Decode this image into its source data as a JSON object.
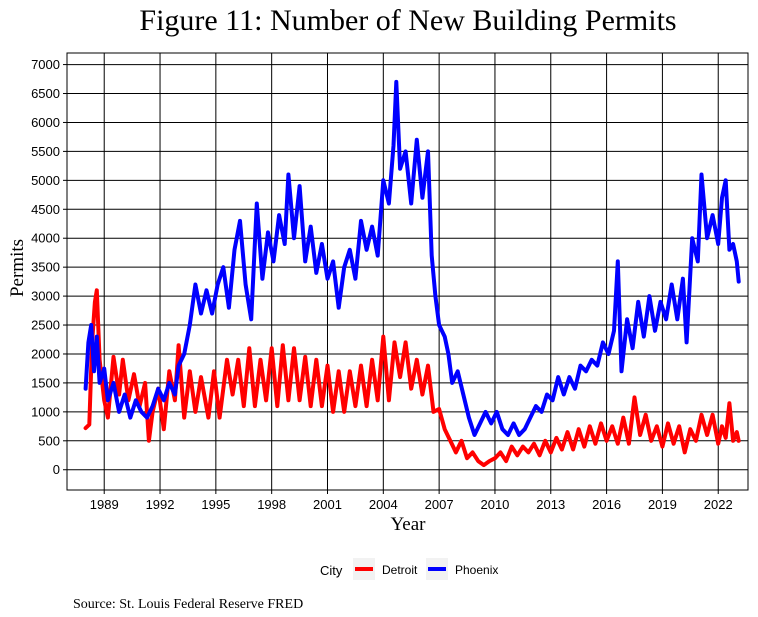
{
  "chart_data": {
    "type": "line",
    "title": "Figure 11: Number of New Building Permits",
    "xlabel": "Year",
    "ylabel": "Permits",
    "xlim": [
      1987.0,
      2023.6
    ],
    "ylim": [
      -350,
      7200
    ],
    "x_ticks": [
      1989,
      1992,
      1995,
      1998,
      2001,
      2004,
      2007,
      2010,
      2013,
      2016,
      2019,
      2022
    ],
    "y_ticks": [
      0,
      500,
      1000,
      1500,
      2000,
      2500,
      3000,
      3500,
      4000,
      4500,
      5000,
      5500,
      6000,
      6500,
      7000
    ],
    "grid": true,
    "legend_title": "City",
    "legend_position": "bottom",
    "caption": "Source: St. Louis Federal Reserve FRED",
    "series": [
      {
        "name": "Detroit",
        "color": "#ff0000",
        "points": [
          [
            1988.0,
            720
          ],
          [
            1988.2,
            780
          ],
          [
            1988.35,
            2200
          ],
          [
            1988.5,
            2900
          ],
          [
            1988.6,
            3100
          ],
          [
            1988.75,
            1900
          ],
          [
            1989.0,
            1200
          ],
          [
            1989.2,
            900
          ],
          [
            1989.5,
            1950
          ],
          [
            1989.8,
            1300
          ],
          [
            1990.0,
            1900
          ],
          [
            1990.3,
            1200
          ],
          [
            1990.6,
            1650
          ],
          [
            1990.9,
            1100
          ],
          [
            1991.2,
            1500
          ],
          [
            1991.4,
            500
          ],
          [
            1991.6,
            1000
          ],
          [
            1991.9,
            1400
          ],
          [
            1992.2,
            700
          ],
          [
            1992.5,
            1700
          ],
          [
            1992.8,
            1200
          ],
          [
            1993.0,
            2150
          ],
          [
            1993.3,
            900
          ],
          [
            1993.6,
            1700
          ],
          [
            1993.9,
            1000
          ],
          [
            1994.2,
            1600
          ],
          [
            1994.6,
            900
          ],
          [
            1994.9,
            1700
          ],
          [
            1995.2,
            900
          ],
          [
            1995.6,
            1900
          ],
          [
            1995.9,
            1300
          ],
          [
            1996.2,
            1900
          ],
          [
            1996.5,
            1100
          ],
          [
            1996.8,
            2100
          ],
          [
            1997.1,
            1100
          ],
          [
            1997.4,
            1900
          ],
          [
            1997.7,
            1200
          ],
          [
            1998.0,
            2100
          ],
          [
            1998.3,
            1100
          ],
          [
            1998.6,
            2150
          ],
          [
            1998.9,
            1200
          ],
          [
            1999.2,
            2100
          ],
          [
            1999.5,
            1200
          ],
          [
            1999.8,
            1950
          ],
          [
            2000.1,
            1100
          ],
          [
            2000.4,
            1900
          ],
          [
            2000.7,
            1100
          ],
          [
            2001.0,
            1800
          ],
          [
            2001.3,
            1000
          ],
          [
            2001.6,
            1700
          ],
          [
            2001.9,
            1000
          ],
          [
            2002.2,
            1700
          ],
          [
            2002.5,
            1100
          ],
          [
            2002.8,
            1800
          ],
          [
            2003.1,
            1100
          ],
          [
            2003.4,
            1900
          ],
          [
            2003.7,
            1200
          ],
          [
            2004.0,
            2300
          ],
          [
            2004.3,
            1200
          ],
          [
            2004.6,
            2200
          ],
          [
            2004.9,
            1600
          ],
          [
            2005.2,
            2200
          ],
          [
            2005.5,
            1400
          ],
          [
            2005.8,
            1900
          ],
          [
            2006.1,
            1300
          ],
          [
            2006.4,
            1800
          ],
          [
            2006.7,
            1000
          ],
          [
            2007.0,
            1050
          ],
          [
            2007.3,
            700
          ],
          [
            2007.6,
            500
          ],
          [
            2007.9,
            300
          ],
          [
            2008.2,
            500
          ],
          [
            2008.5,
            200
          ],
          [
            2008.8,
            300
          ],
          [
            2009.1,
            150
          ],
          [
            2009.4,
            80
          ],
          [
            2009.7,
            150
          ],
          [
            2010.0,
            200
          ],
          [
            2010.3,
            300
          ],
          [
            2010.6,
            150
          ],
          [
            2010.9,
            400
          ],
          [
            2011.2,
            250
          ],
          [
            2011.5,
            400
          ],
          [
            2011.8,
            300
          ],
          [
            2012.1,
            450
          ],
          [
            2012.4,
            250
          ],
          [
            2012.7,
            500
          ],
          [
            2013.0,
            300
          ],
          [
            2013.3,
            550
          ],
          [
            2013.6,
            350
          ],
          [
            2013.9,
            650
          ],
          [
            2014.2,
            350
          ],
          [
            2014.5,
            700
          ],
          [
            2014.8,
            400
          ],
          [
            2015.1,
            750
          ],
          [
            2015.4,
            450
          ],
          [
            2015.7,
            800
          ],
          [
            2016.0,
            500
          ],
          [
            2016.3,
            750
          ],
          [
            2016.6,
            450
          ],
          [
            2016.9,
            900
          ],
          [
            2017.2,
            450
          ],
          [
            2017.5,
            1250
          ],
          [
            2017.8,
            600
          ],
          [
            2018.1,
            950
          ],
          [
            2018.4,
            500
          ],
          [
            2018.7,
            750
          ],
          [
            2019.0,
            400
          ],
          [
            2019.3,
            800
          ],
          [
            2019.6,
            450
          ],
          [
            2019.9,
            750
          ],
          [
            2020.2,
            300
          ],
          [
            2020.5,
            700
          ],
          [
            2020.8,
            500
          ],
          [
            2021.1,
            950
          ],
          [
            2021.4,
            600
          ],
          [
            2021.7,
            950
          ],
          [
            2022.0,
            450
          ],
          [
            2022.2,
            750
          ],
          [
            2022.4,
            550
          ],
          [
            2022.6,
            1150
          ],
          [
            2022.8,
            500
          ],
          [
            2023.0,
            650
          ],
          [
            2023.1,
            500
          ]
        ]
      },
      {
        "name": "Phoenix",
        "color": "#0000ff",
        "points": [
          [
            1988.0,
            1400
          ],
          [
            1988.15,
            2200
          ],
          [
            1988.3,
            2500
          ],
          [
            1988.45,
            1700
          ],
          [
            1988.6,
            2300
          ],
          [
            1988.75,
            1500
          ],
          [
            1989.0,
            1750
          ],
          [
            1989.2,
            1200
          ],
          [
            1989.5,
            1500
          ],
          [
            1989.8,
            1000
          ],
          [
            1990.1,
            1300
          ],
          [
            1990.4,
            900
          ],
          [
            1990.7,
            1200
          ],
          [
            1991.0,
            1000
          ],
          [
            1991.3,
            900
          ],
          [
            1991.6,
            1100
          ],
          [
            1991.9,
            1400
          ],
          [
            1992.2,
            1200
          ],
          [
            1992.5,
            1500
          ],
          [
            1992.8,
            1300
          ],
          [
            1993.0,
            1800
          ],
          [
            1993.3,
            2000
          ],
          [
            1993.6,
            2500
          ],
          [
            1993.9,
            3200
          ],
          [
            1994.2,
            2700
          ],
          [
            1994.5,
            3100
          ],
          [
            1994.8,
            2700
          ],
          [
            1995.1,
            3200
          ],
          [
            1995.4,
            3500
          ],
          [
            1995.7,
            2800
          ],
          [
            1996.0,
            3800
          ],
          [
            1996.3,
            4300
          ],
          [
            1996.6,
            3200
          ],
          [
            1996.9,
            2600
          ],
          [
            1997.2,
            4600
          ],
          [
            1997.5,
            3300
          ],
          [
            1997.8,
            4100
          ],
          [
            1998.1,
            3600
          ],
          [
            1998.4,
            4400
          ],
          [
            1998.7,
            3900
          ],
          [
            1998.9,
            5100
          ],
          [
            1999.2,
            4000
          ],
          [
            1999.5,
            4900
          ],
          [
            1999.8,
            3600
          ],
          [
            2000.1,
            4200
          ],
          [
            2000.4,
            3400
          ],
          [
            2000.7,
            3900
          ],
          [
            2001.0,
            3300
          ],
          [
            2001.3,
            3600
          ],
          [
            2001.6,
            2800
          ],
          [
            2001.9,
            3500
          ],
          [
            2002.2,
            3800
          ],
          [
            2002.5,
            3300
          ],
          [
            2002.8,
            4300
          ],
          [
            2003.1,
            3800
          ],
          [
            2003.4,
            4200
          ],
          [
            2003.7,
            3700
          ],
          [
            2004.0,
            5000
          ],
          [
            2004.3,
            4600
          ],
          [
            2004.55,
            5600
          ],
          [
            2004.7,
            6700
          ],
          [
            2004.9,
            5200
          ],
          [
            2005.2,
            5500
          ],
          [
            2005.5,
            4600
          ],
          [
            2005.8,
            5700
          ],
          [
            2006.1,
            4700
          ],
          [
            2006.4,
            5500
          ],
          [
            2006.6,
            3700
          ],
          [
            2006.8,
            3000
          ],
          [
            2007.0,
            2500
          ],
          [
            2007.3,
            2300
          ],
          [
            2007.5,
            2000
          ],
          [
            2007.7,
            1500
          ],
          [
            2008.0,
            1700
          ],
          [
            2008.3,
            1300
          ],
          [
            2008.6,
            900
          ],
          [
            2008.9,
            600
          ],
          [
            2009.2,
            800
          ],
          [
            2009.5,
            1000
          ],
          [
            2009.8,
            800
          ],
          [
            2010.1,
            1000
          ],
          [
            2010.4,
            700
          ],
          [
            2010.7,
            600
          ],
          [
            2011.0,
            800
          ],
          [
            2011.3,
            600
          ],
          [
            2011.6,
            700
          ],
          [
            2011.9,
            900
          ],
          [
            2012.2,
            1100
          ],
          [
            2012.5,
            1000
          ],
          [
            2012.8,
            1300
          ],
          [
            2013.1,
            1200
          ],
          [
            2013.4,
            1600
          ],
          [
            2013.7,
            1300
          ],
          [
            2014.0,
            1600
          ],
          [
            2014.3,
            1400
          ],
          [
            2014.6,
            1800
          ],
          [
            2014.9,
            1700
          ],
          [
            2015.2,
            1900
          ],
          [
            2015.5,
            1800
          ],
          [
            2015.8,
            2200
          ],
          [
            2016.1,
            2000
          ],
          [
            2016.4,
            2400
          ],
          [
            2016.6,
            3600
          ],
          [
            2016.8,
            1700
          ],
          [
            2017.1,
            2600
          ],
          [
            2017.4,
            2100
          ],
          [
            2017.7,
            2900
          ],
          [
            2018.0,
            2300
          ],
          [
            2018.3,
            3000
          ],
          [
            2018.6,
            2400
          ],
          [
            2018.9,
            2900
          ],
          [
            2019.2,
            2600
          ],
          [
            2019.5,
            3200
          ],
          [
            2019.8,
            2600
          ],
          [
            2020.1,
            3300
          ],
          [
            2020.3,
            2200
          ],
          [
            2020.6,
            4000
          ],
          [
            2020.9,
            3600
          ],
          [
            2021.1,
            5100
          ],
          [
            2021.4,
            4000
          ],
          [
            2021.7,
            4400
          ],
          [
            2022.0,
            3900
          ],
          [
            2022.2,
            4700
          ],
          [
            2022.4,
            5000
          ],
          [
            2022.6,
            3800
          ],
          [
            2022.8,
            3900
          ],
          [
            2023.0,
            3600
          ],
          [
            2023.1,
            3250
          ]
        ]
      }
    ]
  }
}
